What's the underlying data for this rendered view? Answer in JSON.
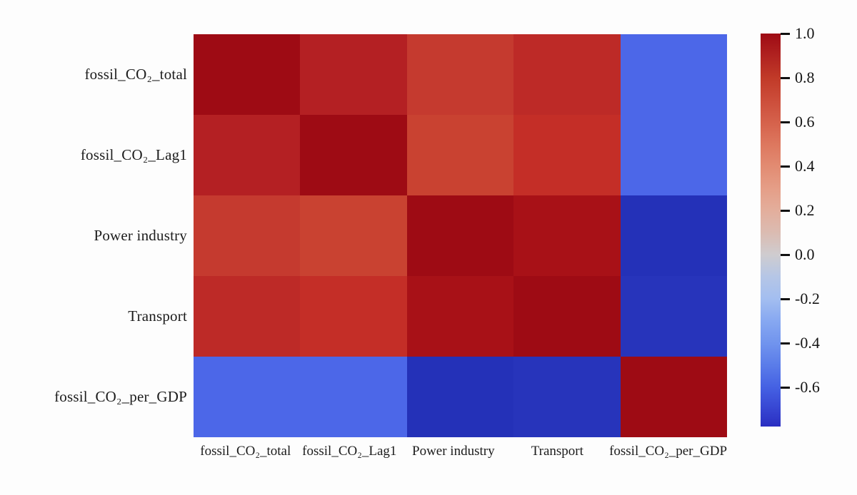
{
  "figure": {
    "title": "",
    "background": "#fdfdfd"
  },
  "chart_data": {
    "type": "heatmap",
    "title": "",
    "xlabel": "",
    "ylabel": "",
    "categories": [
      "fossil_CO₂_total",
      "fossil_CO₂_Lag1",
      "Power industry",
      "Transport",
      "fossil_CO₂_per_GDP"
    ],
    "values": [
      [
        1.0,
        0.91,
        0.79,
        0.87,
        -0.55
      ],
      [
        0.91,
        1.0,
        0.77,
        0.84,
        -0.55
      ],
      [
        0.79,
        0.77,
        1.0,
        0.96,
        -0.76
      ],
      [
        0.87,
        0.84,
        0.96,
        1.0,
        -0.75
      ],
      [
        -0.55,
        -0.55,
        -0.76,
        -0.75,
        1.0
      ]
    ],
    "cell_colors": [
      [
        "#9E0B14",
        "#B42023",
        "#C53A2F",
        "#BD2A27",
        "#4C67E8"
      ],
      [
        "#B42023",
        "#9E0B14",
        "#C94231",
        "#C42E27",
        "#4C67E8"
      ],
      [
        "#C53A2F",
        "#C94231",
        "#9E0B14",
        "#A81117",
        "#2431B8"
      ],
      [
        "#BD2A27",
        "#C42E27",
        "#A81117",
        "#9E0B14",
        "#2734BB"
      ],
      [
        "#4C67E8",
        "#4C67E8",
        "#2431B8",
        "#2734BB",
        "#9E0B14"
      ]
    ],
    "colormap": "coolwarm",
    "grid": false,
    "legend_position": "right",
    "colorbar": {
      "vmin": -0.78,
      "vmax": 1.0,
      "tick_labels": [
        "1.0",
        "0.8",
        "0.6",
        "0.4",
        "0.2",
        "0.0",
        "-0.2",
        "-0.4",
        "-0.6"
      ],
      "tick_values": [
        1.0,
        0.8,
        0.6,
        0.4,
        0.2,
        0.0,
        -0.2,
        -0.4,
        -0.6
      ],
      "tick_positions_pct": [
        0,
        11.25,
        22.5,
        33.75,
        45.0,
        56.25,
        67.5,
        78.75,
        90.0
      ],
      "gradient_stops": [
        {
          "pos": 0.0,
          "color": "#9E0B14"
        },
        {
          "pos": 5.6,
          "color": "#B02220"
        },
        {
          "pos": 11.25,
          "color": "#C13A28"
        },
        {
          "pos": 16.9,
          "color": "#CC4D3A"
        },
        {
          "pos": 22.5,
          "color": "#D5614B"
        },
        {
          "pos": 28.1,
          "color": "#DD775E"
        },
        {
          "pos": 33.75,
          "color": "#E28B72"
        },
        {
          "pos": 39.4,
          "color": "#E59E87"
        },
        {
          "pos": 45.0,
          "color": "#E3AE9C"
        },
        {
          "pos": 50.6,
          "color": "#DBBBB1"
        },
        {
          "pos": 56.25,
          "color": "#CFCCCF"
        },
        {
          "pos": 61.9,
          "color": "#B5C6E6"
        },
        {
          "pos": 67.5,
          "color": "#A3BEF0"
        },
        {
          "pos": 73.1,
          "color": "#87A8F1"
        },
        {
          "pos": 78.75,
          "color": "#7194EE"
        },
        {
          "pos": 84.4,
          "color": "#5A7CE9"
        },
        {
          "pos": 90.0,
          "color": "#4561E3"
        },
        {
          "pos": 95.0,
          "color": "#3848D4"
        },
        {
          "pos": 100.0,
          "color": "#2A2EC1"
        }
      ]
    }
  }
}
